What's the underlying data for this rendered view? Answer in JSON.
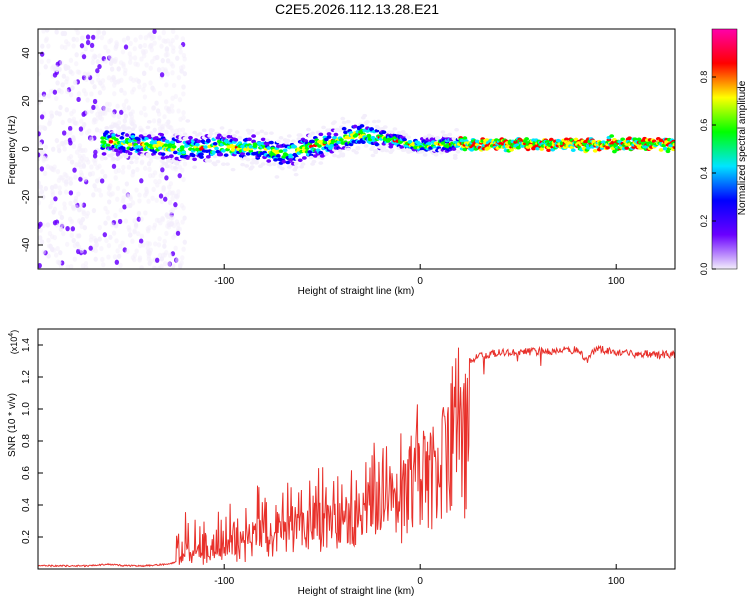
{
  "title": "C2E5.2026.112.13.28.E21",
  "chart_data": [
    {
      "type": "heatmap",
      "xlabel": "Height of straight line (km)",
      "ylabel": "Frequency (Hz)",
      "xlim": [
        -195,
        130
      ],
      "ylim": [
        -50,
        50
      ],
      "xticks": [
        -100,
        0,
        100
      ],
      "yticks": [
        -40,
        -20,
        0,
        20,
        40
      ],
      "colorbar": {
        "label": "Normalized spectral amplitude",
        "range": [
          0,
          1
        ],
        "ticks": [
          "0.0",
          "0.2",
          "0.4",
          "0.6",
          "0.8"
        ],
        "colors": [
          "#f3eefb",
          "#6a00ff",
          "#0000ff",
          "#00e5ff",
          "#00ff00",
          "#ffff00",
          "#ff0000",
          "#ff00aa"
        ]
      },
      "ridge": {
        "x": [
          -160,
          -140,
          -120,
          -100,
          -80,
          -70,
          -60,
          -50,
          -40,
          -30,
          -20,
          -10,
          0,
          10,
          20,
          40,
          60,
          80,
          100,
          120,
          130
        ],
        "y": [
          3,
          2,
          0,
          1,
          0,
          -2,
          0,
          2,
          4,
          6,
          5,
          3,
          1,
          2,
          2,
          2,
          2,
          2,
          2,
          2,
          2
        ]
      }
    },
    {
      "type": "line",
      "xlabel": "Height of straight line (km)",
      "ylabel": "SNR (10 * v/v)",
      "y_scale_label": "(x10",
      "y_scale_exponent": "4",
      "xlim": [
        -195,
        130
      ],
      "ylim": [
        0,
        1.5
      ],
      "xticks": [
        -100,
        0,
        100
      ],
      "yticks": [
        "0.2",
        "0.4",
        "0.6",
        "0.8",
        "1.0",
        "1.2",
        "1.4"
      ],
      "series": [
        {
          "name": "SNR",
          "color": "#e8302a",
          "x": [
            -195,
            -170,
            -160,
            -150,
            -140,
            -130,
            -120,
            -110,
            -100,
            -90,
            -80,
            -70,
            -60,
            -50,
            -40,
            -30,
            -20,
            -10,
            0,
            5,
            10,
            15,
            20,
            25,
            30,
            40,
            60,
            80,
            85,
            90,
            100,
            120,
            130
          ],
          "y": [
            0.02,
            0.02,
            0.03,
            0.02,
            0.02,
            0.03,
            0.05,
            0.1,
            0.15,
            0.2,
            0.25,
            0.3,
            0.35,
            0.4,
            0.45,
            0.5,
            0.6,
            0.7,
            0.8,
            0.9,
            1.0,
            1.15,
            1.25,
            1.3,
            1.33,
            1.35,
            1.36,
            1.37,
            1.3,
            1.38,
            1.35,
            1.34,
            1.34
          ]
        }
      ]
    }
  ]
}
